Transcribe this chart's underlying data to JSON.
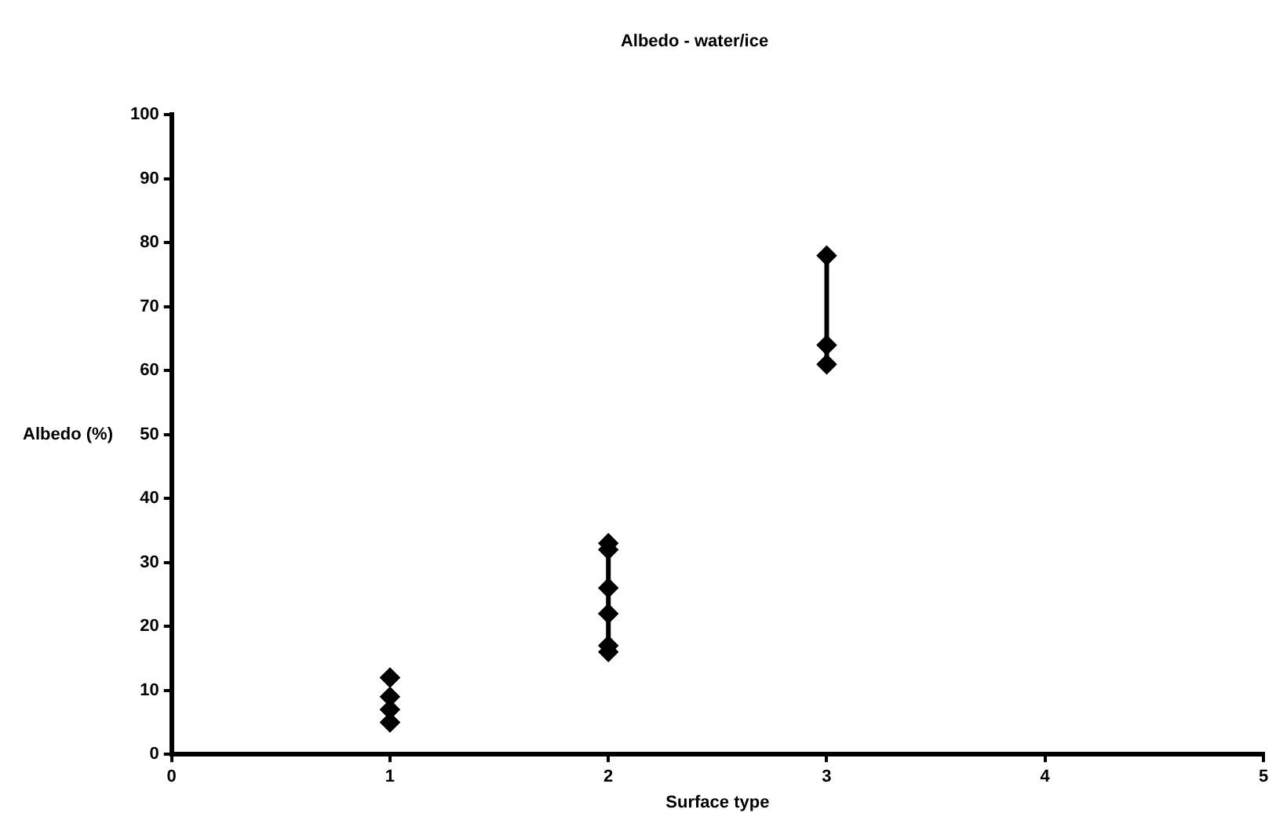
{
  "chart_data": {
    "type": "line",
    "title": "Albedo - water/ice",
    "xlabel": "Surface type",
    "ylabel": "Albedo (%)",
    "xlim": [
      0,
      5
    ],
    "xticks": [
      0,
      1,
      2,
      3,
      4,
      5
    ],
    "ylim": [
      0,
      100
    ],
    "yticks": [
      0,
      10,
      20,
      30,
      40,
      50,
      60,
      70,
      80,
      90,
      100
    ],
    "grid": false,
    "legend": false,
    "marker": "diamond",
    "line_style": "solid",
    "series": [
      {
        "type": "scatter",
        "color": "#000000",
        "x": [
          1,
          1,
          1,
          1
        ],
        "values": [
          12,
          9,
          7,
          5
        ]
      },
      {
        "color": "#000000",
        "x": [
          2,
          2,
          2,
          2,
          2,
          2
        ],
        "values": [
          33,
          32,
          26,
          22,
          17,
          16
        ]
      },
      {
        "color": "#000000",
        "x": [
          3,
          3,
          3
        ],
        "values": [
          78,
          64,
          61
        ]
      }
    ]
  }
}
